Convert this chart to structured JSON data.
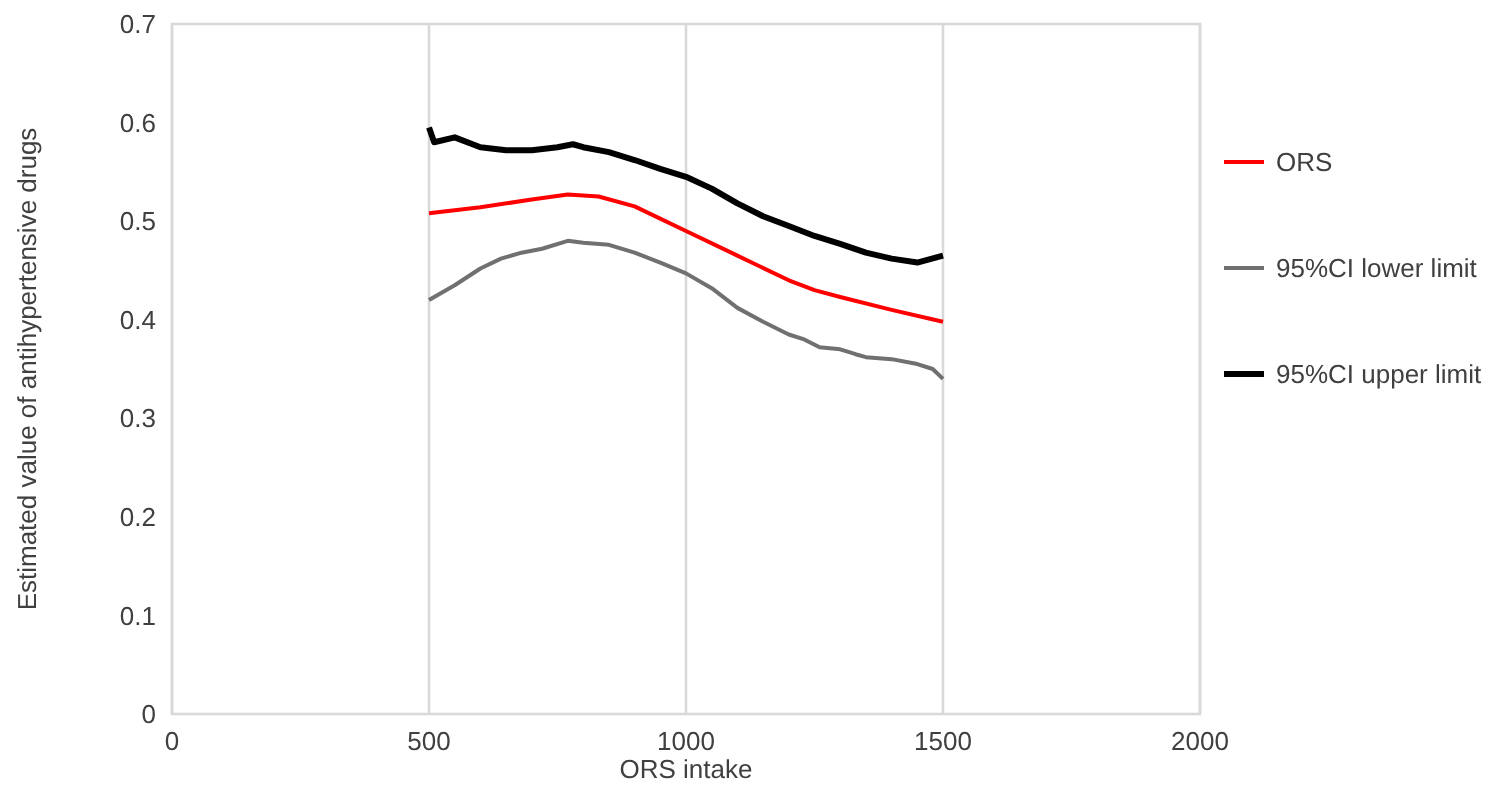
{
  "chart_data": {
    "type": "line",
    "xlabel": "ORS intake",
    "ylabel": "Estimated value of antihypertensive drugs",
    "xlim": [
      0,
      2000
    ],
    "xticks": [
      0,
      500,
      1000,
      1500,
      2000
    ],
    "ylim": [
      0,
      0.7
    ],
    "yticks": [
      0,
      0.1,
      0.2,
      0.3,
      0.4,
      0.5,
      0.6,
      0.7
    ],
    "grid": "x",
    "legend": "right",
    "marker": "none",
    "series": [
      {
        "name": "ORS",
        "color": "#ff0000",
        "x": [
          500,
          600,
          700,
          770,
          830,
          900,
          1000,
          1100,
          1200,
          1250,
          1300,
          1400,
          1500
        ],
        "values": [
          0.508,
          0.514,
          0.522,
          0.527,
          0.525,
          0.515,
          0.49,
          0.465,
          0.44,
          0.43,
          0.423,
          0.41,
          0.398
        ]
      },
      {
        "name": "95%CI lower limit",
        "color": "#707070",
        "x": [
          500,
          550,
          600,
          640,
          680,
          720,
          770,
          800,
          850,
          900,
          950,
          1000,
          1050,
          1100,
          1150,
          1200,
          1230,
          1260,
          1300,
          1330,
          1350,
          1400,
          1450,
          1480,
          1500
        ],
        "values": [
          0.42,
          0.435,
          0.452,
          0.462,
          0.468,
          0.472,
          0.48,
          0.478,
          0.476,
          0.468,
          0.458,
          0.447,
          0.432,
          0.412,
          0.398,
          0.385,
          0.38,
          0.372,
          0.37,
          0.365,
          0.362,
          0.36,
          0.355,
          0.35,
          0.34
        ]
      },
      {
        "name": "95%CI upper limit",
        "color": "#000000",
        "x": [
          500,
          510,
          550,
          600,
          650,
          700,
          750,
          780,
          800,
          850,
          900,
          950,
          1000,
          1050,
          1100,
          1150,
          1200,
          1250,
          1300,
          1350,
          1400,
          1450,
          1500
        ],
        "values": [
          0.595,
          0.58,
          0.585,
          0.575,
          0.572,
          0.572,
          0.575,
          0.578,
          0.575,
          0.57,
          0.562,
          0.553,
          0.545,
          0.533,
          0.518,
          0.505,
          0.495,
          0.485,
          0.477,
          0.468,
          0.462,
          0.458,
          0.465
        ]
      }
    ]
  }
}
